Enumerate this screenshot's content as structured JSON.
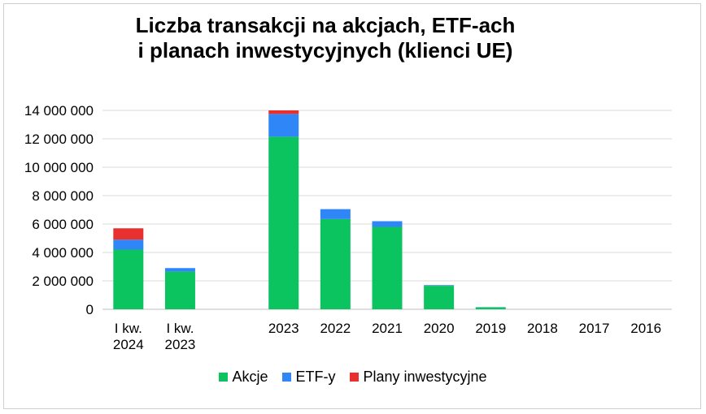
{
  "chart_data": {
    "type": "bar",
    "stacked": true,
    "title_lines": [
      "Liczba transakcji na akcjach, ETF-ach",
      "i planach inwestycyjnych (klienci UE)"
    ],
    "categories": [
      [
        "I kw.",
        "2024"
      ],
      [
        "I kw.",
        "2023"
      ],
      [
        ""
      ],
      [
        "2023"
      ],
      [
        "2022"
      ],
      [
        "2021"
      ],
      [
        "2020"
      ],
      [
        "2019"
      ],
      [
        "2018"
      ],
      [
        "2017"
      ],
      [
        "2016"
      ]
    ],
    "series": [
      {
        "name": "Akcje",
        "color": "#0cc45f",
        "values": [
          4200000,
          2650000,
          0,
          12150000,
          6350000,
          5800000,
          1650000,
          140000,
          0,
          0,
          0
        ]
      },
      {
        "name": "ETF-y",
        "color": "#2f86f6",
        "values": [
          700000,
          250000,
          0,
          1600000,
          700000,
          400000,
          50000,
          10000,
          0,
          0,
          0
        ]
      },
      {
        "name": "Plany inwestycyjne",
        "color": "#e8312f",
        "values": [
          800000,
          0,
          0,
          250000,
          0,
          0,
          0,
          0,
          0,
          0,
          0
        ]
      }
    ],
    "y_ticks": [
      "0",
      "2 000 000",
      "4 000 000",
      "6 000 000",
      "8 000 000",
      "10 000 000",
      "12 000 000",
      "14 000 000"
    ],
    "ylim": [
      0,
      14000000
    ],
    "grid": true,
    "legend_position": "bottom"
  }
}
